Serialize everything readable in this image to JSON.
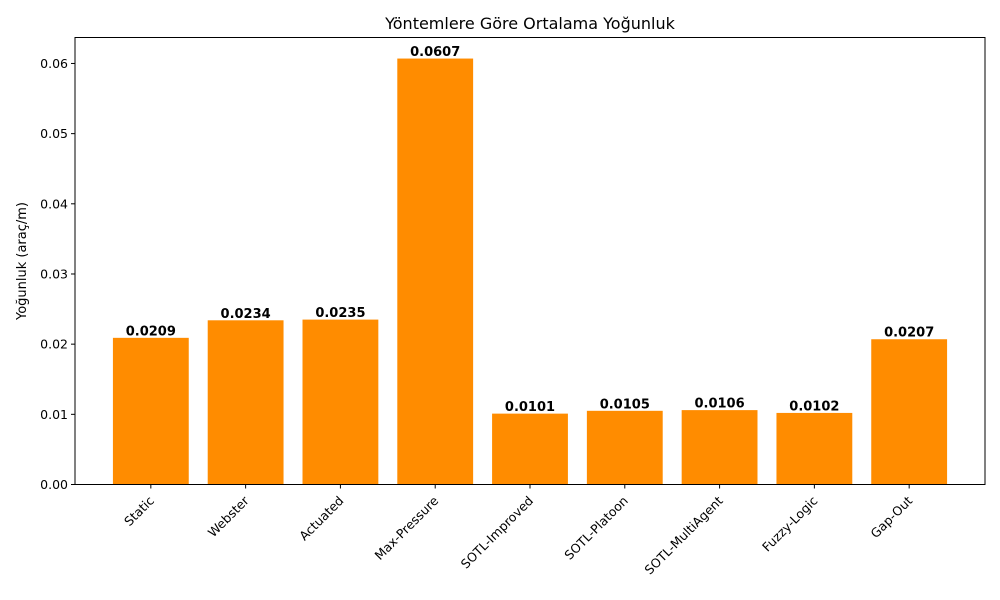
{
  "chart_data": {
    "type": "bar",
    "title": "Yöntemlere Göre Ortalama Yoğunluk",
    "xlabel": "",
    "ylabel": "Yoğunluk (araç/m)",
    "categories": [
      "Static",
      "Webster",
      "Actuated",
      "Max-Pressure",
      "SOTL-Improved",
      "SOTL-Platoon",
      "SOTL-MultiAgent",
      "Fuzzy-Logic",
      "Gap-Out"
    ],
    "values": [
      0.0209,
      0.0234,
      0.0235,
      0.0607,
      0.0101,
      0.0105,
      0.0106,
      0.0102,
      0.0207
    ],
    "value_labels": [
      "0.0209",
      "0.0234",
      "0.0235",
      "0.0607",
      "0.0101",
      "0.0105",
      "0.0106",
      "0.0102",
      "0.0207"
    ],
    "ylim": [
      0,
      0.0637
    ],
    "yticks": [
      0,
      0.01,
      0.02,
      0.03,
      0.04,
      0.05,
      0.06
    ],
    "ytick_labels": [
      "0.00",
      "0.01",
      "0.02",
      "0.03",
      "0.04",
      "0.05",
      "0.06"
    ],
    "bar_color": "#ff8c00",
    "grid": false,
    "legend": "none"
  }
}
